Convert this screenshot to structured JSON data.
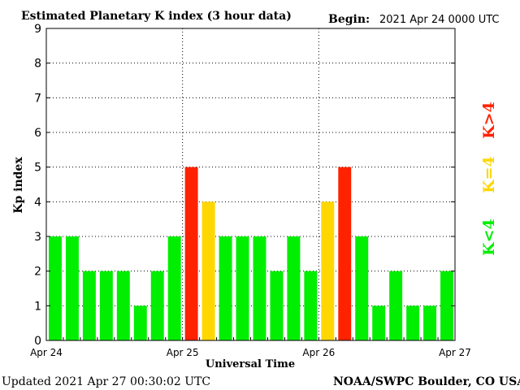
{
  "chart_data": {
    "type": "bar",
    "title": "Estimated Planetary K index (3 hour data)",
    "begin_label": "Begin:",
    "begin_value": "2021 Apr 24 0000 UTC",
    "xlabel": "Universal Time",
    "ylabel": "Kp index",
    "ylim": [
      0,
      9
    ],
    "yticks": [
      "0",
      "1",
      "2",
      "3",
      "4",
      "5",
      "6",
      "7",
      "8",
      "9"
    ],
    "xtick_labels": [
      "Apr 24",
      "Apr 25",
      "Apr 26",
      "Apr 27"
    ],
    "grid": true,
    "values": [
      3,
      3,
      2,
      2,
      2,
      1,
      2,
      3,
      5,
      4,
      3,
      3,
      3,
      2,
      3,
      2,
      4,
      5,
      3,
      1,
      2,
      1,
      1,
      2
    ],
    "colors": {
      "low": "#00ee00",
      "equal": "#ffd700",
      "high": "#ff2200"
    },
    "legend": [
      "K<4",
      "K=4",
      "K>4"
    ]
  },
  "footer": {
    "updated": "Updated 2021 Apr 27 00:30:02 UTC",
    "source": "NOAA/SWPC Boulder, CO USA"
  }
}
